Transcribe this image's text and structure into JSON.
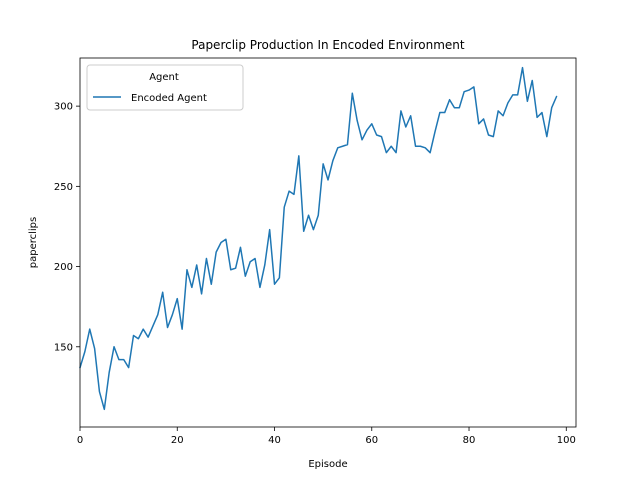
{
  "chart_data": {
    "type": "line",
    "title": "Paperclip Production In Encoded Environment",
    "xlabel": "Episode",
    "ylabel": "paperclips",
    "xlim": [
      0,
      102
    ],
    "ylim": [
      100,
      330
    ],
    "xticks": [
      0,
      20,
      40,
      60,
      80,
      100
    ],
    "yticks": [
      150,
      200,
      250,
      300
    ],
    "grid": false,
    "legend": {
      "title": "Agent",
      "placement": "top-left"
    },
    "series": [
      {
        "name": "Encoded Agent",
        "color": "#1f77b4",
        "x": [
          0,
          1,
          2,
          3,
          4,
          5,
          6,
          7,
          8,
          9,
          10,
          11,
          12,
          13,
          14,
          15,
          16,
          17,
          18,
          19,
          20,
          21,
          22,
          23,
          24,
          25,
          26,
          27,
          28,
          29,
          30,
          31,
          32,
          33,
          34,
          35,
          36,
          37,
          38,
          39,
          40,
          41,
          42,
          43,
          44,
          45,
          46,
          47,
          48,
          49,
          50,
          51,
          52,
          53,
          54,
          55,
          56,
          57,
          58,
          59,
          60,
          61,
          62,
          63,
          64,
          65,
          66,
          67,
          68,
          69,
          70,
          71,
          72,
          73,
          74,
          75,
          76,
          77,
          78,
          79,
          80,
          81,
          82,
          83,
          84,
          85,
          86,
          87,
          88,
          89,
          90,
          91,
          92,
          93,
          94,
          95,
          96,
          97,
          98
        ],
        "values": [
          137,
          147,
          161,
          149,
          122,
          111,
          134,
          150,
          142,
          142,
          137,
          157,
          155,
          161,
          156,
          163,
          170,
          184,
          162,
          170,
          180,
          161,
          198,
          187,
          201,
          183,
          205,
          189,
          209,
          215,
          217,
          198,
          199,
          212,
          194,
          203,
          205,
          187,
          201,
          223,
          189,
          193,
          237,
          247,
          245,
          269,
          222,
          232,
          223,
          232,
          264,
          254,
          266,
          274,
          275,
          276,
          308,
          291,
          279,
          285,
          289,
          282,
          281,
          271,
          275,
          271,
          297,
          287,
          294,
          275,
          275,
          274,
          271,
          284,
          296,
          296,
          304,
          299,
          299,
          309,
          310,
          312,
          289,
          292,
          282,
          281,
          297,
          294,
          302,
          307,
          307,
          324,
          303,
          316,
          293,
          296,
          281,
          299,
          306
        ]
      }
    ]
  }
}
